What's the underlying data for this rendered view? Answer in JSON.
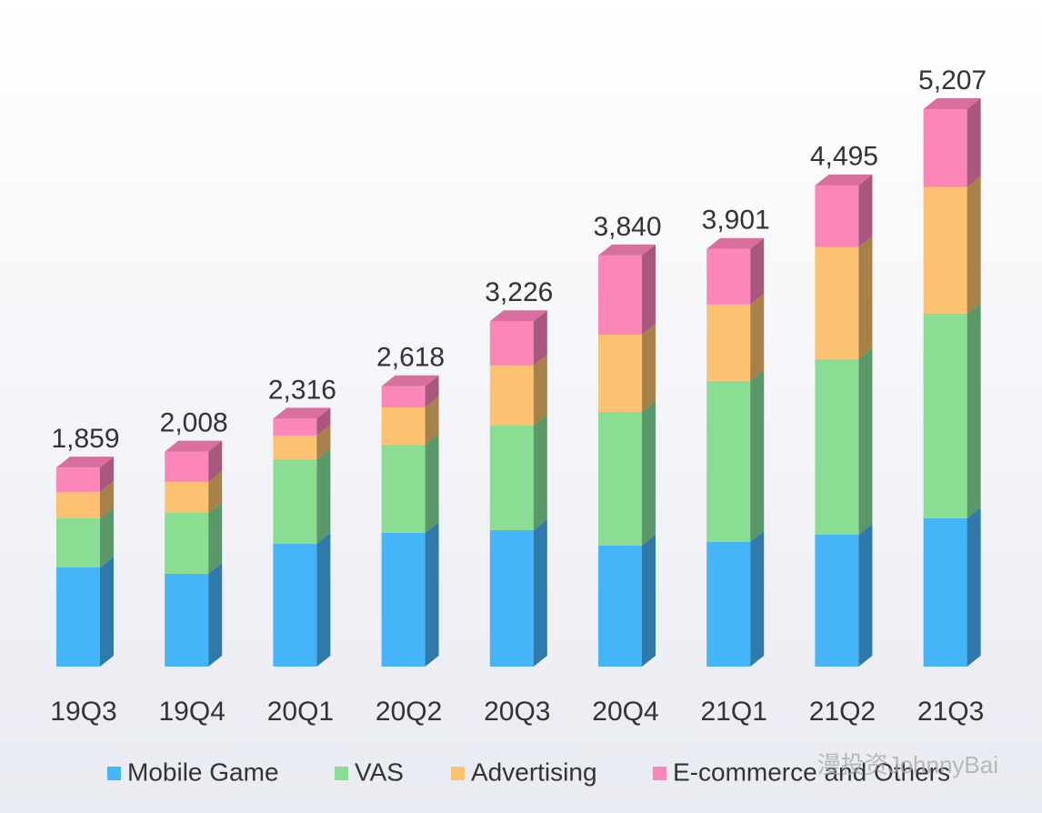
{
  "chart_data": {
    "type": "bar3d_stacked",
    "categories": [
      "19Q3",
      "19Q4",
      "20Q1",
      "20Q2",
      "20Q3",
      "20Q4",
      "21Q1",
      "21Q2",
      "21Q3"
    ],
    "series": [
      {
        "name": "Mobile Game",
        "color": "#45b4f8",
        "side": "#2f7aaa",
        "values": [
          926,
          867,
          1147,
          1249,
          1274,
          1130,
          1164,
          1232,
          1385
        ]
      },
      {
        "name": "VAS",
        "color": "#8ade94",
        "side": "#5b9869",
        "values": [
          459,
          569,
          790,
          824,
          977,
          1249,
          1504,
          1640,
          1912
        ]
      },
      {
        "name": "Advertising",
        "color": "#fdc271",
        "side": "#a88049",
        "values": [
          246,
          289,
          221,
          348,
          561,
          722,
          714,
          1045,
          1181
        ]
      },
      {
        "name": "E-commerce and Others",
        "color": "#fc86b8",
        "side": "#a8587c",
        "values": [
          228,
          283,
          158,
          197,
          414,
          739,
          519,
          578,
          729
        ]
      }
    ],
    "totals": [
      1859,
      2008,
      2316,
      2618,
      3226,
      3840,
      3901,
      4495,
      5207
    ],
    "total_labels": [
      "1,859",
      "2,008",
      "2,316",
      "2,618",
      "3,226",
      "3,840",
      "3,901",
      "4,495",
      "5,207"
    ],
    "legend": "bottom",
    "watermark": "漫投资JohnnyBai"
  }
}
